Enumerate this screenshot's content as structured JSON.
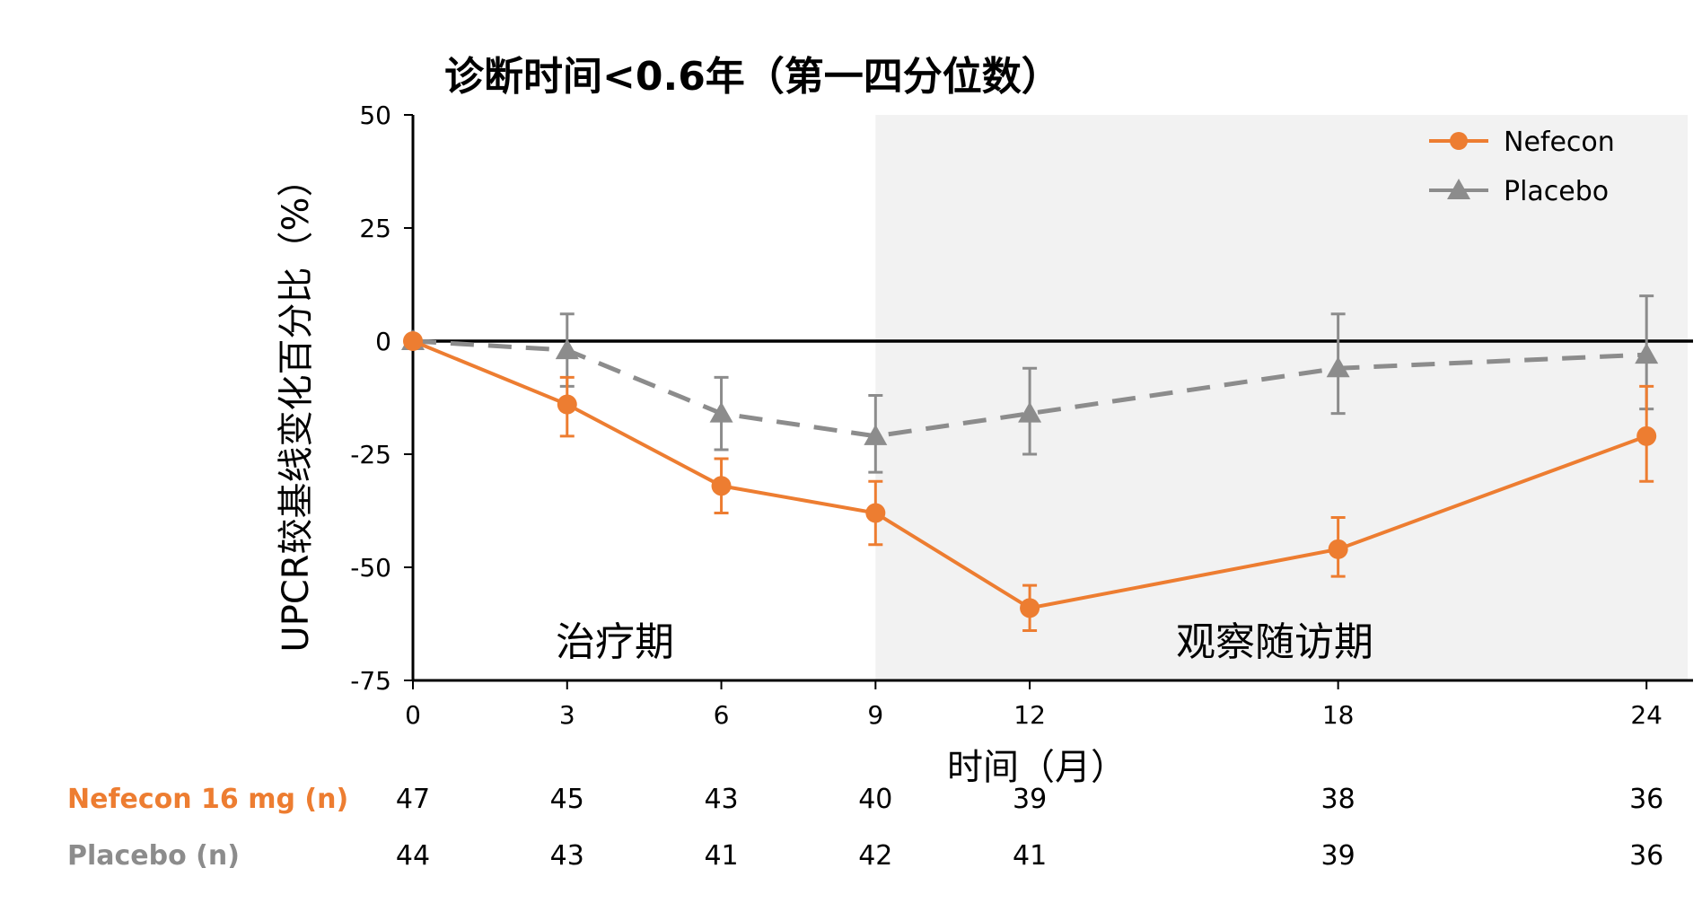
{
  "chart_data": {
    "type": "line",
    "title": "诊断时间<0.6年（第一四分位数）",
    "xlabel": "时间（月）",
    "ylabel": "UPCR较基线变化百分比（%）",
    "x": [
      0,
      3,
      6,
      9,
      12,
      18,
      24
    ],
    "x_ticks": [
      "0",
      "3",
      "6",
      "9",
      "12",
      "18",
      "24"
    ],
    "y_ticks": [
      "50",
      "25",
      "0",
      "-25",
      "-50",
      "-75"
    ],
    "ylim": [
      -75,
      50
    ],
    "xlim": [
      0,
      24.8
    ],
    "shaded_from_x": 9,
    "period_labels": {
      "treatment": "治疗期",
      "followup": "观察随访期"
    },
    "legend_position": "top-right",
    "colors": {
      "nefecon": "#ED7D31",
      "placebo": "#8C8C8C",
      "shade": "#F2F2F2",
      "axis": "#000000"
    },
    "series": [
      {
        "name": "Nefecon",
        "marker": "circle",
        "line_style": "solid",
        "values": [
          0,
          -14,
          -32,
          -38,
          -59,
          -46,
          -21
        ],
        "error_low": [
          0,
          -21,
          -38,
          -45,
          -64,
          -52,
          -31
        ],
        "error_high": [
          0,
          -8,
          -26,
          -31,
          -54,
          -39,
          -10
        ]
      },
      {
        "name": "Placebo",
        "marker": "triangle",
        "line_style": "dashed",
        "values": [
          0,
          -2,
          -16,
          -21,
          -16,
          -6,
          -3
        ],
        "error_low": [
          0,
          -10,
          -24,
          -29,
          -25,
          -16,
          -15
        ],
        "error_high": [
          0,
          6,
          -8,
          -12,
          -6,
          6,
          10
        ]
      }
    ],
    "risk_table": {
      "rows": [
        {
          "label": "Nefecon 16 mg (n)",
          "color": "#ED7D31",
          "values": [
            "47",
            "45",
            "43",
            "40",
            "39",
            "38",
            "36"
          ]
        },
        {
          "label": "Placebo (n)",
          "color": "#8C8C8C",
          "values": [
            "44",
            "43",
            "41",
            "42",
            "41",
            "39",
            "36"
          ]
        }
      ]
    }
  }
}
